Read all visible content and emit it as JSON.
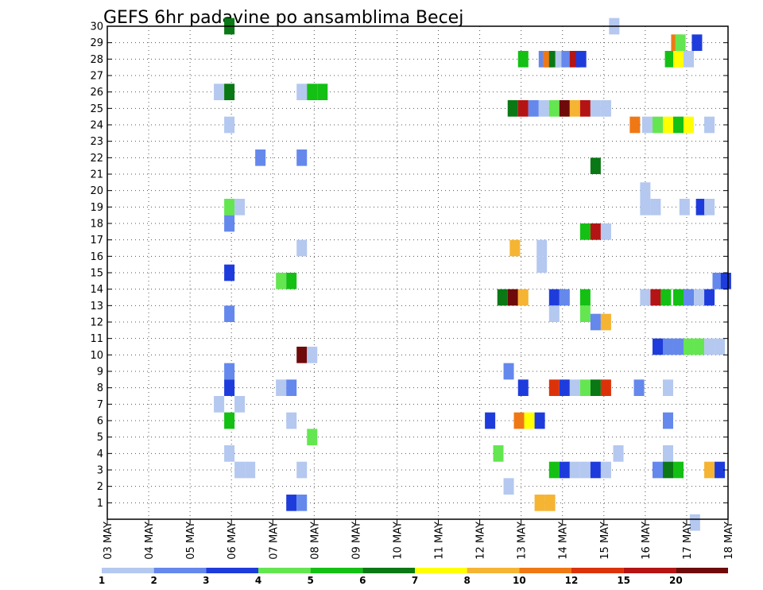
{
  "chart_data": {
    "type": "heatmap",
    "title": "GEFS 6hr padavine po ansamblima Becej",
    "y_ticks": [
      "1",
      "2",
      "3",
      "4",
      "5",
      "6",
      "7",
      "8",
      "9",
      "10",
      "11",
      "12",
      "13",
      "14",
      "15",
      "16",
      "17",
      "18",
      "19",
      "20",
      "21",
      "22",
      "23",
      "24",
      "25",
      "26",
      "27",
      "28",
      "29",
      "30"
    ],
    "ylim": [
      0,
      30
    ],
    "x_ticks": [
      "03 MAY",
      "04 MAY",
      "05 MAY",
      "06 MAY",
      "07 MAY",
      "08 MAY",
      "09 MAY",
      "10 MAY",
      "11 MAY",
      "12 MAY",
      "13 MAY",
      "14 MAY",
      "15 MAY",
      "16 MAY",
      "17 MAY",
      "18 MAY"
    ],
    "xlim": [
      0,
      15
    ],
    "grid": true,
    "colorbar": {
      "labels": [
        "1",
        "2",
        "3",
        "4",
        "5",
        "6",
        "7",
        "8",
        "10",
        "12",
        "15",
        "20"
      ],
      "colors": [
        "#b4c8f0",
        "#6488ec",
        "#1e3cdc",
        "#64e650",
        "#14c014",
        "#0a7814",
        "#ffff00",
        "#f5b432",
        "#f07814",
        "#dc320a",
        "#b41414",
        "#6e0a0a"
      ]
    },
    "cells": [
      {
        "t": 2.95,
        "m": 30,
        "c": 6
      },
      {
        "t": 12.25,
        "m": 30,
        "c": 1
      },
      {
        "t": 13.75,
        "m": 29,
        "c": 9
      },
      {
        "t": 13.85,
        "m": 29,
        "c": 4
      },
      {
        "t": 14.25,
        "m": 29,
        "c": 3
      },
      {
        "t": 10.05,
        "m": 28,
        "c": 5
      },
      {
        "t": 10.55,
        "m": 28,
        "c": 2
      },
      {
        "t": 10.65,
        "m": 28,
        "c": 9
      },
      {
        "t": 10.8,
        "m": 28,
        "c": 6
      },
      {
        "t": 10.95,
        "m": 28,
        "c": 1
      },
      {
        "t": 11.1,
        "m": 28,
        "c": 2
      },
      {
        "t": 11.3,
        "m": 28,
        "c": 11
      },
      {
        "t": 11.45,
        "m": 28,
        "c": 3
      },
      {
        "t": 13.6,
        "m": 28,
        "c": 5
      },
      {
        "t": 13.8,
        "m": 28,
        "c": 7
      },
      {
        "t": 14.05,
        "m": 28,
        "c": 1
      },
      {
        "t": 2.7,
        "m": 26,
        "c": 1
      },
      {
        "t": 2.95,
        "m": 26,
        "c": 6
      },
      {
        "t": 4.7,
        "m": 26,
        "c": 1
      },
      {
        "t": 4.95,
        "m": 26,
        "c": 5
      },
      {
        "t": 5.2,
        "m": 26,
        "c": 5
      },
      {
        "t": 9.8,
        "m": 25,
        "c": 6
      },
      {
        "t": 10.05,
        "m": 25,
        "c": 11
      },
      {
        "t": 10.3,
        "m": 25,
        "c": 2
      },
      {
        "t": 10.55,
        "m": 25,
        "c": 1
      },
      {
        "t": 10.8,
        "m": 25,
        "c": 4
      },
      {
        "t": 11.05,
        "m": 25,
        "c": 12
      },
      {
        "t": 11.3,
        "m": 25,
        "c": 8
      },
      {
        "t": 11.55,
        "m": 25,
        "c": 11
      },
      {
        "t": 11.8,
        "m": 25,
        "c": 1
      },
      {
        "t": 12.05,
        "m": 25,
        "c": 1
      },
      {
        "t": 2.95,
        "m": 24,
        "c": 1
      },
      {
        "t": 12.75,
        "m": 24,
        "c": 9
      },
      {
        "t": 13.05,
        "m": 24,
        "c": 1
      },
      {
        "t": 13.3,
        "m": 24,
        "c": 4
      },
      {
        "t": 13.55,
        "m": 24,
        "c": 7
      },
      {
        "t": 13.8,
        "m": 24,
        "c": 5
      },
      {
        "t": 14.05,
        "m": 24,
        "c": 7
      },
      {
        "t": 14.55,
        "m": 24,
        "c": 1
      },
      {
        "t": 3.7,
        "m": 22,
        "c": 2
      },
      {
        "t": 4.7,
        "m": 22,
        "c": 2
      },
      {
        "t": 11.8,
        "m": 21.5,
        "c": 6
      },
      {
        "t": 13.0,
        "m": 20,
        "c": 1
      },
      {
        "t": 2.95,
        "m": 19,
        "c": 4
      },
      {
        "t": 3.2,
        "m": 19,
        "c": 1
      },
      {
        "t": 13.0,
        "m": 19,
        "c": 1
      },
      {
        "t": 13.25,
        "m": 19,
        "c": 1
      },
      {
        "t": 13.95,
        "m": 19,
        "c": 1
      },
      {
        "t": 14.35,
        "m": 19,
        "c": 3
      },
      {
        "t": 14.55,
        "m": 19,
        "c": 1
      },
      {
        "t": 2.95,
        "m": 18,
        "c": 2
      },
      {
        "t": 11.55,
        "m": 17.5,
        "c": 5
      },
      {
        "t": 11.8,
        "m": 17.5,
        "c": 11
      },
      {
        "t": 12.05,
        "m": 17.5,
        "c": 1
      },
      {
        "t": 4.7,
        "m": 16.5,
        "c": 1
      },
      {
        "t": 9.85,
        "m": 16.5,
        "c": 8
      },
      {
        "t": 10.5,
        "m": 16.5,
        "c": 1
      },
      {
        "t": 10.5,
        "m": 15.5,
        "c": 1
      },
      {
        "t": 2.95,
        "m": 15,
        "c": 3
      },
      {
        "t": 14.75,
        "m": 14.5,
        "c": 2
      },
      {
        "t": 14.95,
        "m": 14.5,
        "c": 3
      },
      {
        "t": 4.2,
        "m": 14.5,
        "c": 4
      },
      {
        "t": 4.45,
        "m": 14.5,
        "c": 5
      },
      {
        "t": 9.55,
        "m": 13.5,
        "c": 6
      },
      {
        "t": 9.8,
        "m": 13.5,
        "c": 12
      },
      {
        "t": 10.05,
        "m": 13.5,
        "c": 8
      },
      {
        "t": 10.8,
        "m": 13.5,
        "c": 3
      },
      {
        "t": 11.05,
        "m": 13.5,
        "c": 2
      },
      {
        "t": 11.55,
        "m": 13.5,
        "c": 5
      },
      {
        "t": 13.0,
        "m": 13.5,
        "c": 1
      },
      {
        "t": 13.25,
        "m": 13.5,
        "c": 11
      },
      {
        "t": 13.5,
        "m": 13.5,
        "c": 5
      },
      {
        "t": 13.8,
        "m": 13.5,
        "c": 5
      },
      {
        "t": 14.05,
        "m": 13.5,
        "c": 2
      },
      {
        "t": 14.3,
        "m": 13.5,
        "c": 1
      },
      {
        "t": 14.55,
        "m": 13.5,
        "c": 3
      },
      {
        "t": 2.95,
        "m": 12.5,
        "c": 2
      },
      {
        "t": 10.8,
        "m": 12.5,
        "c": 1
      },
      {
        "t": 11.55,
        "m": 12.5,
        "c": 4
      },
      {
        "t": 11.8,
        "m": 12,
        "c": 2
      },
      {
        "t": 12.05,
        "m": 12,
        "c": 8
      },
      {
        "t": 13.3,
        "m": 10.5,
        "c": 3
      },
      {
        "t": 13.55,
        "m": 10.5,
        "c": 2
      },
      {
        "t": 13.8,
        "m": 10.5,
        "c": 2
      },
      {
        "t": 14.05,
        "m": 10.5,
        "c": 4
      },
      {
        "t": 14.3,
        "m": 10.5,
        "c": 4
      },
      {
        "t": 14.55,
        "m": 10.5,
        "c": 1
      },
      {
        "t": 14.8,
        "m": 10.5,
        "c": 1
      },
      {
        "t": 4.7,
        "m": 10,
        "c": 12
      },
      {
        "t": 4.95,
        "m": 10,
        "c": 1
      },
      {
        "t": 2.95,
        "m": 9,
        "c": 2
      },
      {
        "t": 9.7,
        "m": 9,
        "c": 2
      },
      {
        "t": 2.95,
        "m": 8,
        "c": 3
      },
      {
        "t": 4.2,
        "m": 8,
        "c": 1
      },
      {
        "t": 4.45,
        "m": 8,
        "c": 2
      },
      {
        "t": 10.05,
        "m": 8,
        "c": 3
      },
      {
        "t": 10.8,
        "m": 8,
        "c": 10
      },
      {
        "t": 11.05,
        "m": 8,
        "c": 3
      },
      {
        "t": 11.3,
        "m": 8,
        "c": 1
      },
      {
        "t": 11.55,
        "m": 8,
        "c": 4
      },
      {
        "t": 11.8,
        "m": 8,
        "c": 6
      },
      {
        "t": 12.05,
        "m": 8,
        "c": 10
      },
      {
        "t": 12.85,
        "m": 8,
        "c": 2
      },
      {
        "t": 13.55,
        "m": 8,
        "c": 1
      },
      {
        "t": 2.7,
        "m": 7,
        "c": 1
      },
      {
        "t": 3.2,
        "m": 7,
        "c": 1
      },
      {
        "t": 2.95,
        "m": 6,
        "c": 5
      },
      {
        "t": 4.45,
        "m": 6,
        "c": 1
      },
      {
        "t": 9.25,
        "m": 6,
        "c": 3
      },
      {
        "t": 9.95,
        "m": 6,
        "c": 9
      },
      {
        "t": 10.2,
        "m": 6,
        "c": 7
      },
      {
        "t": 10.45,
        "m": 6,
        "c": 3
      },
      {
        "t": 13.55,
        "m": 6,
        "c": 2
      },
      {
        "t": 4.95,
        "m": 5,
        "c": 4
      },
      {
        "t": 2.95,
        "m": 4,
        "c": 1
      },
      {
        "t": 9.45,
        "m": 4,
        "c": 4
      },
      {
        "t": 12.35,
        "m": 4,
        "c": 1
      },
      {
        "t": 13.55,
        "m": 4,
        "c": 1
      },
      {
        "t": 3.2,
        "m": 3,
        "c": 1
      },
      {
        "t": 3.45,
        "m": 3,
        "c": 1
      },
      {
        "t": 4.7,
        "m": 3,
        "c": 1
      },
      {
        "t": 10.8,
        "m": 3,
        "c": 5
      },
      {
        "t": 11.05,
        "m": 3,
        "c": 3
      },
      {
        "t": 11.3,
        "m": 3,
        "c": 1
      },
      {
        "t": 11.55,
        "m": 3,
        "c": 1
      },
      {
        "t": 11.8,
        "m": 3,
        "c": 3
      },
      {
        "t": 12.05,
        "m": 3,
        "c": 1
      },
      {
        "t": 13.3,
        "m": 3,
        "c": 2
      },
      {
        "t": 13.55,
        "m": 3,
        "c": 6
      },
      {
        "t": 13.8,
        "m": 3,
        "c": 5
      },
      {
        "t": 14.55,
        "m": 3,
        "c": 8
      },
      {
        "t": 14.8,
        "m": 3,
        "c": 3
      },
      {
        "t": 9.7,
        "m": 2,
        "c": 1
      },
      {
        "t": 4.45,
        "m": 1,
        "c": 3
      },
      {
        "t": 4.7,
        "m": 1,
        "c": 2
      },
      {
        "t": 10.45,
        "m": 1,
        "c": 8
      },
      {
        "t": 10.7,
        "m": 1,
        "c": 8
      },
      {
        "t": 14.2,
        "m": -0.2,
        "c": 1
      }
    ]
  }
}
